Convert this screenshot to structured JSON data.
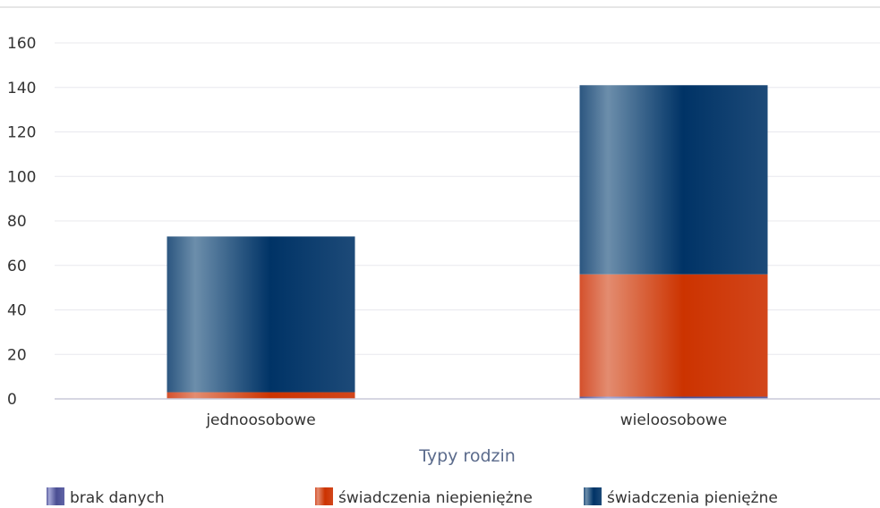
{
  "chart_data": {
    "type": "bar",
    "stacked": true,
    "categories": [
      "jednoosobowe",
      "wieloosobowe"
    ],
    "series": [
      {
        "name": "brak danych",
        "values": [
          0,
          1
        ],
        "color": "#6b6fb0"
      },
      {
        "name": "świadczenia niepieniężne",
        "values": [
          3,
          55
        ],
        "color": "#cc3300"
      },
      {
        "name": "świadczenia pieniężne",
        "values": [
          70,
          85
        ],
        "color": "#1f4e7d"
      }
    ],
    "xlabel": "Typy rodzin",
    "ylabel": "",
    "ylim": [
      0,
      160
    ],
    "yticks": [
      0,
      20,
      40,
      60,
      80,
      100,
      120,
      140,
      160
    ],
    "grid": true,
    "legend_position": "bottom"
  }
}
